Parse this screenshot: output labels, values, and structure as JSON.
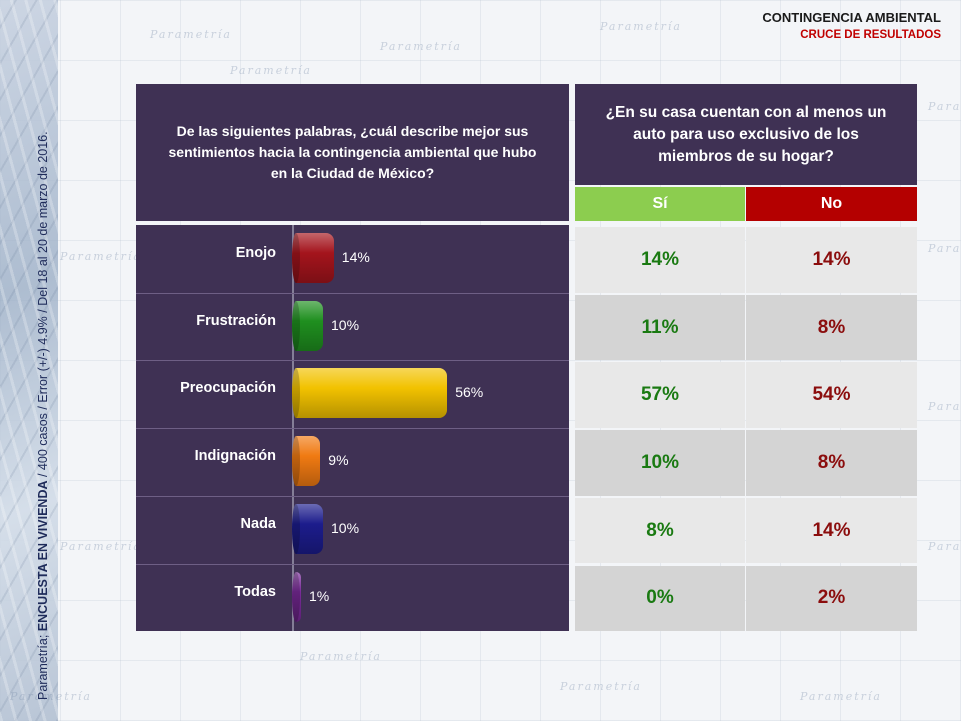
{
  "header": {
    "title": "CONTINGENCIA AMBIENTAL",
    "subtitle": "CRUCE DE RESULTADOS"
  },
  "source_note": {
    "prefix": "Parametría; ",
    "bold": "ENCUESTA EN VIVIENDA",
    "suffix": " / 400 casos / Error (+/-) 4.9% / Del 18 al 20 de marzo de 2016."
  },
  "watermark_text": "Parametría",
  "colors": {
    "panel": "#3f3154",
    "yes_header": "#8ccd4f",
    "no_header": "#b40000",
    "yes_text": "#1a7a12",
    "no_text": "#8b0d0d"
  },
  "chart_data": {
    "type": "bar",
    "orientation": "horizontal",
    "question": "De las siguientes palabras, ¿cuál describe mejor sus sentimientos hacia la contingencia ambiental que hubo en la Ciudad de México?",
    "categories": [
      "Enojo",
      "Frustración",
      "Preocupación",
      "Indignación",
      "Nada",
      "Todas"
    ],
    "values": [
      14,
      10,
      56,
      9,
      10,
      1
    ],
    "value_labels": [
      "14%",
      "10%",
      "56%",
      "9%",
      "10%",
      "1%"
    ],
    "bar_colors": [
      "#a4141c",
      "#1f8f1f",
      "#f2c200",
      "#f07a12",
      "#1c1c8c",
      "#7a2a9a"
    ],
    "xlim": [
      0,
      100
    ],
    "grid": false,
    "legend": "none"
  },
  "cross_table": {
    "question": "¿En su casa cuentan con al menos un auto para uso exclusivo de los miembros de su hogar?",
    "columns": [
      "Sí",
      "No"
    ],
    "rows": [
      {
        "category": "Enojo",
        "yes": "14%",
        "no": "14%"
      },
      {
        "category": "Frustración",
        "yes": "11%",
        "no": "8%"
      },
      {
        "category": "Preocupación",
        "yes": "57%",
        "no": "54%"
      },
      {
        "category": "Indignación",
        "yes": "10%",
        "no": "8%"
      },
      {
        "category": "Nada",
        "yes": "8%",
        "no": "14%"
      },
      {
        "category": "Todas",
        "yes": "0%",
        "no": "2%"
      }
    ]
  }
}
